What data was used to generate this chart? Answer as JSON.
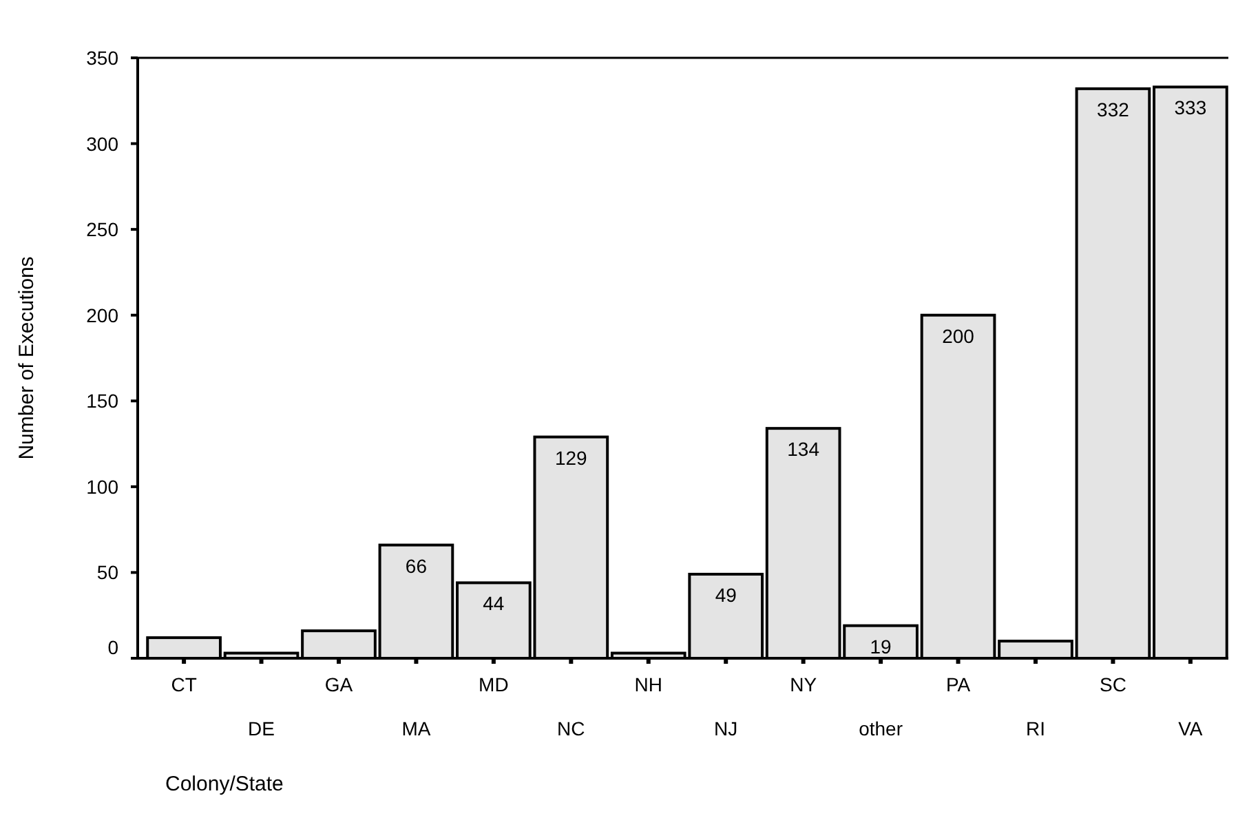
{
  "chart_data": {
    "type": "bar",
    "xlabel": "Colony/State",
    "ylabel": "Number of Executions",
    "categories": [
      "CT",
      "DE",
      "GA",
      "MA",
      "MD",
      "NC",
      "NH",
      "NJ",
      "NY",
      "other",
      "PA",
      "RI",
      "SC",
      "VA"
    ],
    "values": [
      12,
      3,
      16,
      66,
      44,
      129,
      3,
      49,
      134,
      19,
      200,
      10,
      332,
      333
    ],
    "value_labels": [
      null,
      null,
      null,
      "66",
      "44",
      "129",
      null,
      "49",
      "134",
      "19",
      "200",
      null,
      "332",
      "333"
    ],
    "color": "#e4e4e4",
    "ylim": [
      0,
      350
    ],
    "yticks": [
      0,
      50,
      100,
      150,
      200,
      250,
      300,
      350
    ],
    "grid": false
  }
}
